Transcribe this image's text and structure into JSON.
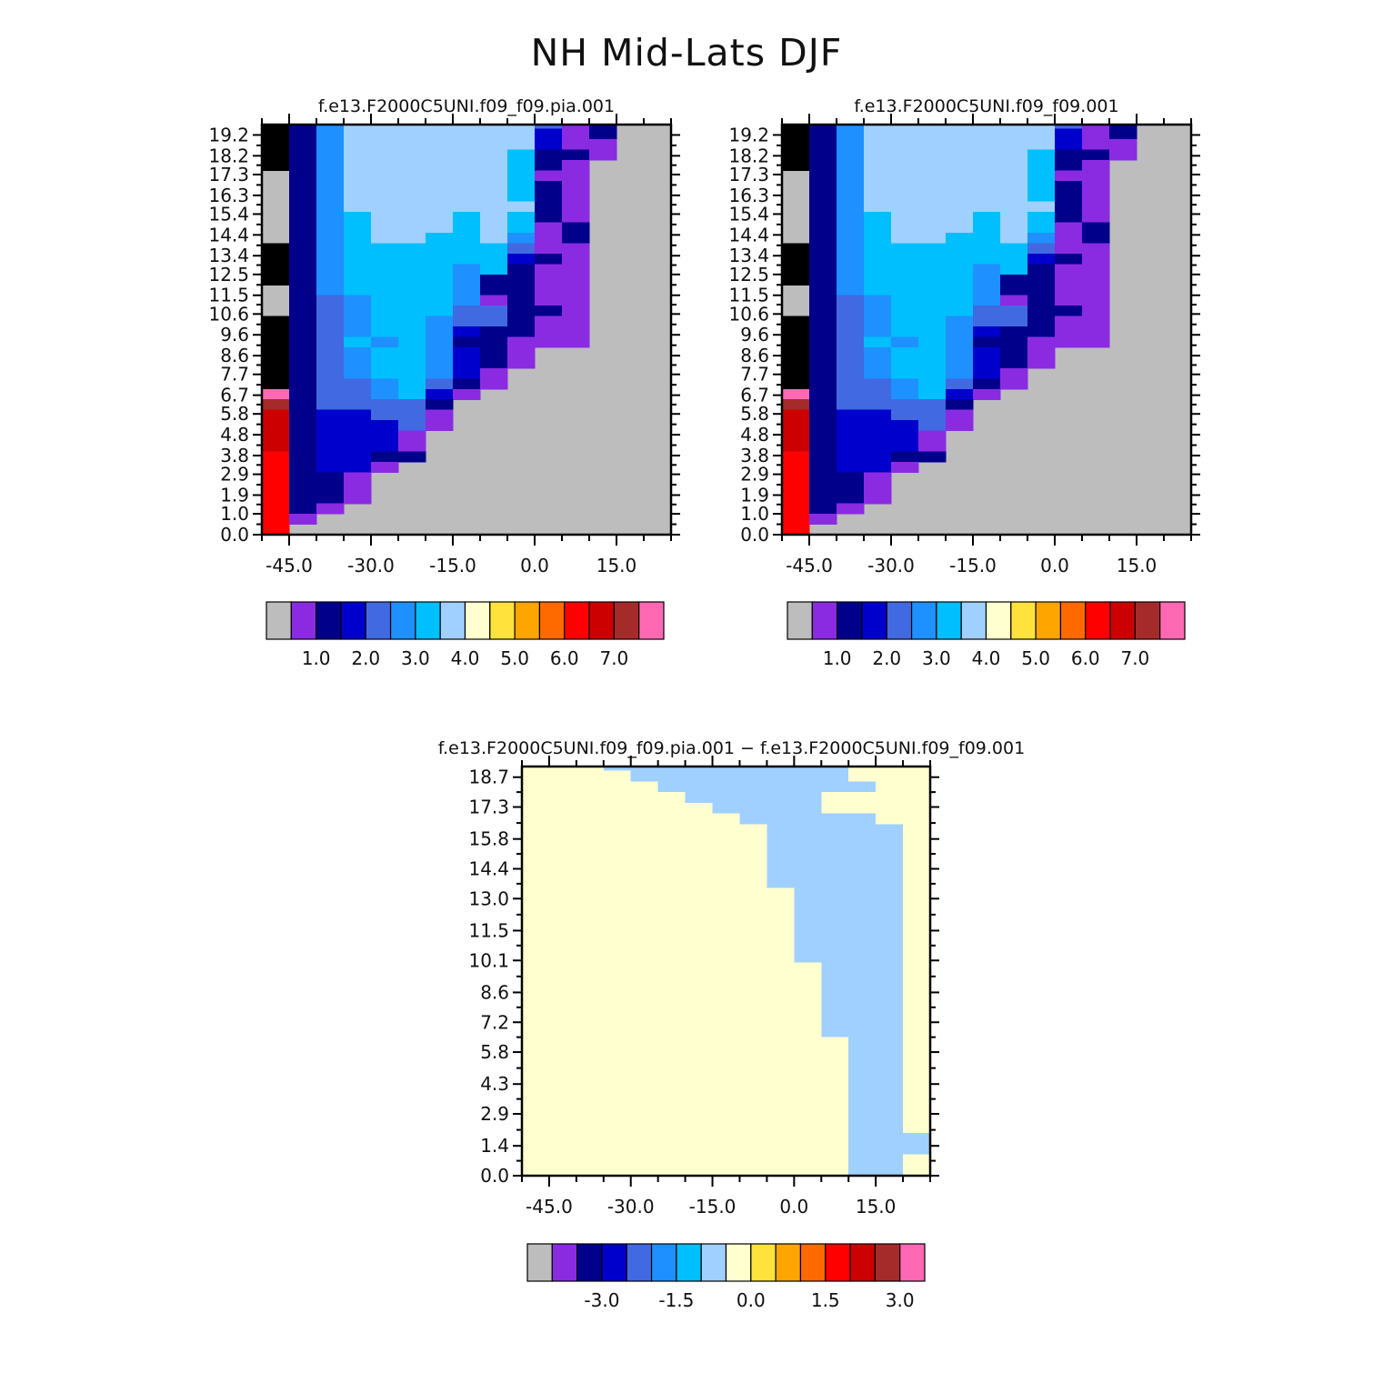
{
  "figure": {
    "title": "NH Mid-Lats DJF"
  },
  "chart_data": [
    {
      "type": "heatmap",
      "title": "f.e13.F2000C5UNI.f09_f09.pia.001",
      "xlabel": "",
      "ylabel": "",
      "xlim": [
        -50,
        25
      ],
      "ylim": [
        0.0,
        19.7
      ],
      "x_ticks": [
        "-45.0",
        "-30.0",
        "-15.0",
        "0.0",
        "15.0"
      ],
      "y_ticks": [
        "0.0",
        "1.0",
        "1.9",
        "2.9",
        "3.8",
        "4.8",
        "5.8",
        "6.7",
        "7.7",
        "8.6",
        "9.6",
        "10.6",
        "11.5",
        "12.5",
        "13.4",
        "14.4",
        "15.4",
        "16.3",
        "17.3",
        "18.2",
        "19.2"
      ],
      "x_centers": [
        -47.5,
        -42.5,
        -37.5,
        -32.5,
        -27.5,
        -22.5,
        -17.5,
        -12.5,
        -7.5,
        -2.5,
        2.5,
        7.5,
        12.5,
        17.5,
        22.5
      ],
      "y_row_bottom": 0.0,
      "y_row_step": 0.5,
      "missing_color": "#BDBDBD",
      "colorbar": {
        "colors": [
          "#BDBDBD",
          "#8A2BE2",
          "#00008B",
          "#0000CD",
          "#4169E1",
          "#1E90FF",
          "#00BFFF",
          "#A0D0FF",
          "#FFFFD0",
          "#FFE23C",
          "#FFA500",
          "#FF6A00",
          "#FF0000",
          "#CD0000",
          "#A52A2A",
          "#FF69B4"
        ],
        "labels": [
          "1.0",
          "2.0",
          "3.0",
          "4.0",
          "5.0",
          "6.0",
          "7.0"
        ],
        "label_after_box": [
          1,
          3,
          5,
          7,
          9,
          11,
          13
        ]
      },
      "rows": [
        "D2333311ACDC9NN",
        "C2334578BAC8NNN",
        "C2345677ABDB2NN",
        "D2234577ACCB2NN",
        "E23456789BCC2NN",
        "O234458789CE2NN",
        "O22545778BCB3NN",
        "O22446679BB86NN",
        "O22346679BB94NN",
        "N22345679BBA4NN",
        "N22356679CBB5NN",
        "N22346678BCB4NN",
        "N22346678ACC4NN",
        "N22346678ABC5NN",
        "N22455679BCB5NN",
        "N22556688BBA5NN",
        "N22556779AAA6NN",
        "N22556779AAA6NN",
        "O22556778AAA6NN",
        "O22456788AA96NN",
        "O23566789AA91NN",
        "O23566789AA71NN",
        "O23566789AA71NN",
        "O24567788AA82NN",
        "O24567888AA92NN",
        "O24567888A971NN",
        "O24566888A961NN",
        "O24567888A961NN",
        "O24567888A961NN",
        "O23567888A961NN",
        "O23567888A961NN",
        "O2356778898611N",
        "O2356778897611N",
        "O2356778897511N",
        "O2356777887421N",
        "O236777888742NN",
        "O236777788641NN",
        "O246777788641NN",
        "O246777787621NN",
        "N247777787611NN",
        "N247777787521NN",
        "O257777777412NN",
        "O257777777312NN",
        "O257777777311NN",
        "O257777776221NN",
        "O25777777621NNN",
        "N25777777611NNN",
        "N25777777621NNN",
        "N25777777621NNN",
        "N25777777721NNN",
        "N25677767621NNN",
        "N25677767612NNN",
        "N25677667512NNN",
        "O25666666411NNN",
        "O25666666321NNN",
        "O25666656211NNN",
        "O25666652211NNN",
        "N25666652211NNN",
        "N24566651211NNN",
        "N24566644221NNN",
        "M24566544211NNN",
        "L24566532211NNN",
        "K24656522111NNN",
        "J245665321NNNNN",
        "I245665321NNNNN",
        "H24566531NNNNNN",
        "G24456421NNNNNN",
        "F2445631NNNNNNN",
        "E244442NNNNNNNN",
        "D233441NNNNNNNN",
        "D233341NNNNNNNN",
        "D23331NNNNNNNNN",
        "D23331NNNNNNNNN",
        "C23322NNNNNNNNN",
        "C2331NNNNNNNNNN",
        "C221NNNNNNNNNNN",
        "C221NNNNNNNNNNN",
        "C221NNNNNNNNNNN",
        "C21NNNNNNNNNNNN",
        "C1NNNNNNNNNNNNN",
        "CNNNNNNNNNNNNNN"
      ]
    },
    {
      "type": "heatmap",
      "title": "f.e13.F2000C5UNI.f09_f09.001",
      "xlabel": "",
      "ylabel": "",
      "xlim": [
        -50,
        25
      ],
      "ylim": [
        0.0,
        19.7
      ],
      "x_ticks": [
        "-45.0",
        "-30.0",
        "-15.0",
        "0.0",
        "15.0"
      ],
      "y_ticks": [
        "0.0",
        "1.0",
        "1.9",
        "2.9",
        "3.8",
        "4.8",
        "5.8",
        "6.7",
        "7.7",
        "8.6",
        "9.6",
        "10.6",
        "11.5",
        "12.5",
        "13.4",
        "14.4",
        "15.4",
        "16.3",
        "17.3",
        "18.2",
        "19.2"
      ],
      "x_centers": [
        -47.5,
        -42.5,
        -37.5,
        -32.5,
        -27.5,
        -22.5,
        -17.5,
        -12.5,
        -7.5,
        -2.5,
        2.5,
        7.5,
        12.5,
        17.5,
        22.5
      ],
      "y_row_bottom": 0.0,
      "y_row_step": 0.5,
      "missing_color": "#BDBDBD",
      "colorbar": {
        "colors": [
          "#BDBDBD",
          "#8A2BE2",
          "#00008B",
          "#0000CD",
          "#4169E1",
          "#1E90FF",
          "#00BFFF",
          "#A0D0FF",
          "#FFFFD0",
          "#FFE23C",
          "#FFA500",
          "#FF6A00",
          "#FF0000",
          "#CD0000",
          "#A52A2A",
          "#FF69B4"
        ],
        "labels": [
          "1.0",
          "2.0",
          "3.0",
          "4.0",
          "5.0",
          "6.0",
          "7.0"
        ],
        "label_after_box": [
          1,
          3,
          5,
          7,
          9,
          11,
          13
        ]
      },
      "rows": [
        "D2333311ACDC9NN",
        "C2334578BAC8NNN",
        "C2345677ABDB2NN",
        "D2234577ACCB2NN",
        "E23456789BCC2NN",
        "O234458789CE2NN",
        "O22545778BCB3NN",
        "O22446679BB86NN",
        "O22346679BB94NN",
        "N22345679BBA4NN",
        "N22356679CBB5NN",
        "N22346678BCB4NN",
        "N22346678ACC4NN",
        "N22346678ABC5NN",
        "N22455679BCB5NN",
        "N22556688BBA5NN",
        "N22556779AAA6NN",
        "N22556779AAA6NN",
        "O22556778AAA6NN",
        "O22456788AA96NN",
        "O23566789AA91NN",
        "O23566789AA71NN",
        "O23566789AA71NN",
        "O24567788AA82NN",
        "O24567888AA92NN",
        "O24567888A971NN",
        "O24566888A961NN",
        "O24567888A961NN",
        "O24567888A961NN",
        "O23567888A961NN",
        "O23567888A961NN",
        "O2356778898611N",
        "O2356778897611N",
        "O2356778897511N",
        "O2356777887421N",
        "O236777888742NN",
        "O236777788641NN",
        "O246777788641NN",
        "O246777787621NN",
        "N247777787611NN",
        "N247777787521NN",
        "O257777777412NN",
        "O257777777312NN",
        "O257777777311NN",
        "O257777776221NN",
        "O25777777621NNN",
        "N25777777611NNN",
        "N25777777621NNN",
        "N25777777621NNN",
        "N25777777721NNN",
        "N25677767621NNN",
        "N25677767612NNN",
        "N25677667512NNN",
        "O25666666411NNN",
        "O25666666321NNN",
        "O25666656211NNN",
        "O25666652211NNN",
        "N25666652211NNN",
        "N24566651211NNN",
        "N24566644221NNN",
        "M24566544211NNN",
        "L24566532211NNN",
        "K24656522111NNN",
        "J245665321NNNNN",
        "I245665321NNNNN",
        "H24566531NNNNNN",
        "G24456421NNNNNN",
        "F2445631NNNNNNN",
        "E244442NNNNNNNN",
        "D233441NNNNNNNN",
        "D233341NNNNNNNN",
        "D23331NNNNNNNNN",
        "D23331NNNNNNNNN",
        "C23322NNNNNNNNN",
        "C2331NNNNNNNNNN",
        "C221NNNNNNNNNNN",
        "C221NNNNNNNNNNN",
        "C221NNNNNNNNNNN",
        "C21NNNNNNNNNNNN",
        "C1NNNNNNNNNNNNN",
        "CNNNNNNNNNNNNNN"
      ]
    },
    {
      "type": "heatmap",
      "title": "f.e13.F2000C5UNI.f09_f09.pia.001 − f.e13.F2000C5UNI.f09_f09.001",
      "xlabel": "",
      "ylabel": "",
      "xlim": [
        -50,
        25
      ],
      "ylim": [
        0.0,
        19.2
      ],
      "x_ticks": [
        "-45.0",
        "-30.0",
        "-15.0",
        "0.0",
        "15.0"
      ],
      "y_ticks": [
        "0.0",
        "1.4",
        "2.9",
        "4.3",
        "5.8",
        "7.2",
        "8.6",
        "10.1",
        "11.5",
        "13.0",
        "14.4",
        "15.8",
        "17.3",
        "18.7"
      ],
      "x_centers": [
        -47.5,
        -42.5,
        -37.5,
        -32.5,
        -27.5,
        -22.5,
        -17.5,
        -12.5,
        -7.5,
        -2.5,
        2.5,
        7.5,
        12.5,
        17.5,
        22.5
      ],
      "y_row_bottom": 0.0,
      "y_row_step": 0.5,
      "missing_color": "#BDBDBD",
      "colorbar": {
        "colors": [
          "#BDBDBD",
          "#8A2BE2",
          "#00008B",
          "#0000CD",
          "#4169E1",
          "#1E90FF",
          "#00BFFF",
          "#A0D0FF",
          "#FFFFD0",
          "#FFE23C",
          "#FFA500",
          "#FF6A00",
          "#FF0000",
          "#CD0000",
          "#A52A2A",
          "#FF69B4"
        ],
        "labels": [
          "-3.0",
          "-1.5",
          "0.0",
          "1.5",
          "3.0"
        ],
        "label_after_box": [
          2,
          5,
          8,
          11,
          14
        ]
      },
      "rows": [
        "777777777888887",
        "777777777888887",
        "777777777888887",
        "777777777888887",
        "777777777888887",
        "777777788888888",
        "777777788888888",
        "777777788888888",
        "777777788888888",
        "777777788888888",
        "777777788888888",
        "777777788888888",
        "777777788888888",
        "777777788888888",
        "777777788888888",
        "777777788888888",
        "777777788888888",
        "777777888888888",
        "777777888888888",
        "777777888888888",
        "777777888888888",
        "777777888888888",
        "777777888888888",
        "777777888888888",
        "777777888888888",
        "777777788888888",
        "777777778888888",
        "777777777888888",
        "777777777888888",
        "777777777888888",
        "777777778888888",
        "777777788888888",
        "777777778888888",
        "777777777888888",
        "777777777888888",
        "777777777888888",
        "777777777888888",
        "777777777788888",
        "777777777788888",
        "877777777778888",
        "887777777777888",
        "888777777777888",
        "888877777777888",
        "888887777777788",
        "888888777778888",
        "888888877778888",
        "888888887777788",
        "888888888777778",
        "888888888777778",
        "888888888777778",
        "888888888777778",
        "888888888777778",
        "888888888777778",
        "888888888877778",
        "888888888877778",
        "888888888877778",
        "888888888877778",
        "888888888877778",
        "888888888877778",
        "888888888877778",
        "888888888887778",
        "888888888887778",
        "888888888887778",
        "888888888887778",
        "888888888887778",
        "888888888887778",
        "888888888887778",
        "888888888888778",
        "888888888888778",
        "888888888888778",
        "888888888888778",
        "888888888888778",
        "888888888888778",
        "888888888888778",
        "888888888888778",
        "888888888888778",
        "888888888888777",
        "888888888888777",
        "888888888888778",
        "888888888888778"
      ]
    }
  ]
}
